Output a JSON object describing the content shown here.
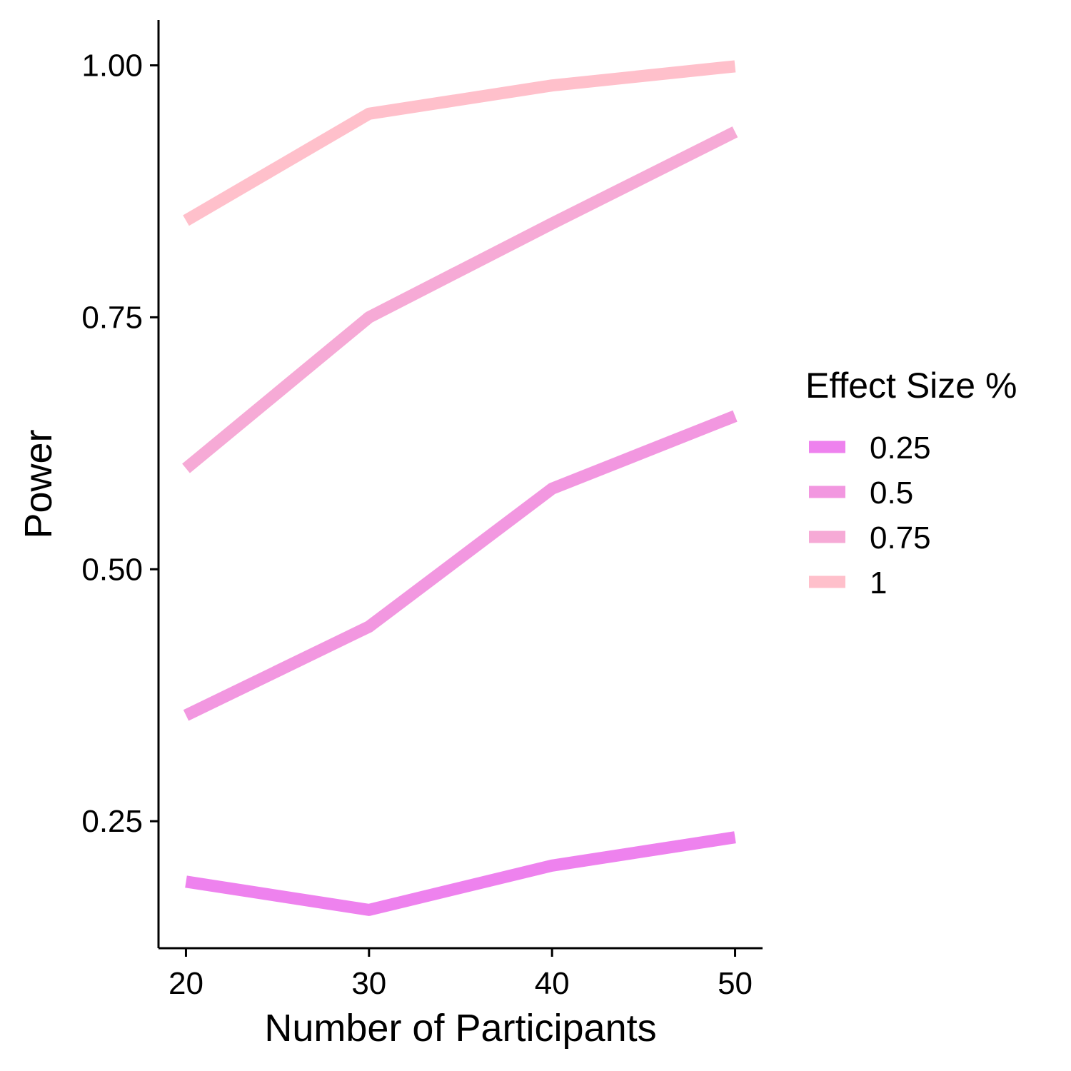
{
  "chart_data": {
    "type": "line",
    "xlabel": "Number of Participants",
    "ylabel": "Power",
    "x": [
      20,
      30,
      40,
      50
    ],
    "xticks": [
      "20",
      "30",
      "40",
      "50"
    ],
    "yticks": [
      "0.25",
      "0.50",
      "0.75",
      "1.00"
    ],
    "ytick_values": [
      0.25,
      0.5,
      0.75,
      1.0
    ],
    "xlim": [
      18.5,
      51.5
    ],
    "ylim": [
      0.124,
      1.045
    ],
    "grid": false,
    "legend": {
      "title": "Effect Size %",
      "placement": "right"
    },
    "series": [
      {
        "name": "0.25",
        "color": "#ee82ee",
        "values": [
          0.19,
          0.162,
          0.206,
          0.234
        ]
      },
      {
        "name": "0.5",
        "color": "#f297e0",
        "values": [
          0.355,
          0.443,
          0.58,
          0.652
        ]
      },
      {
        "name": "0.75",
        "color": "#f6aad6",
        "values": [
          0.6,
          0.75,
          0.843,
          0.934
        ]
      },
      {
        "name": "1",
        "color": "#ffc0cb",
        "values": [
          0.846,
          0.952,
          0.98,
          0.999
        ]
      }
    ]
  }
}
